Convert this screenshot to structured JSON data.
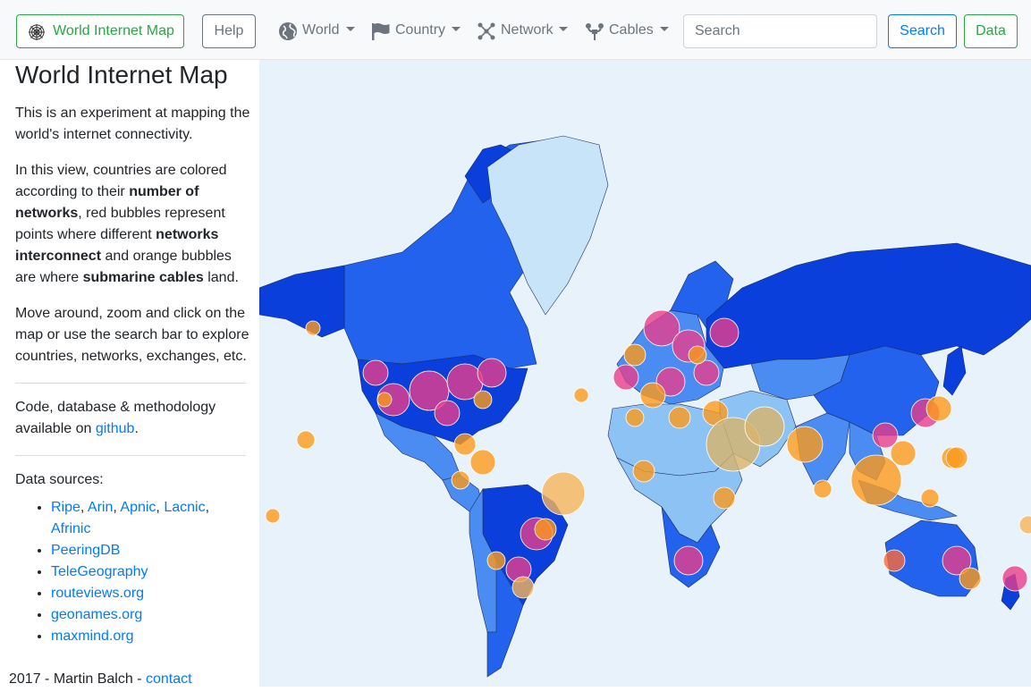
{
  "navbar": {
    "brand": "World Internet Map",
    "help": "Help",
    "menus": [
      {
        "label": "World",
        "icon": "globe-icon"
      },
      {
        "label": "Country",
        "icon": "flag-icon"
      },
      {
        "label": "Network",
        "icon": "network-icon"
      },
      {
        "label": "Cables",
        "icon": "cable-icon"
      }
    ],
    "search_placeholder": "Search",
    "search_button": "Search",
    "data_button": "Data"
  },
  "sidebar": {
    "title": "World Internet Map",
    "intro": "This is an experiment at mapping the world's internet connectivity.",
    "view": {
      "t1": "In this view, countries are colored according to their ",
      "b1": "number of networks",
      "t2": ", red bubbles represent points where different ",
      "b2": "networks interconnect",
      "t3": " and orange bubbles are where ",
      "b3": "submarine cables",
      "t4": " land."
    },
    "move": "Move around, zoom and click on the map or use the search bar to explore countries, networks, exchanges, etc.",
    "code_text": "Code, database & methodology available on ",
    "code_link": "github",
    "code_end": ".",
    "sources_title": "Data sources:",
    "rir": [
      "Ripe",
      "Arin",
      "Apnic",
      "Lacnic",
      "Afrinic"
    ],
    "sources": [
      "PeeringDB",
      "TeleGeography",
      "routeviews.org",
      "geonames.org",
      "maxmind.org"
    ]
  },
  "footer": {
    "text": "2017 - Martin Balch - ",
    "link": "contact"
  },
  "colors": {
    "ocean": "#e8f2fb",
    "country_most_networks": "#0a3fdc",
    "country_many_networks": "#2262ec",
    "country_some_networks": "#4a8cf2",
    "country_few_networks": "#8cc2f4",
    "greenland": "#c8e4f8",
    "ix_bubble": "#e83e8c",
    "cable_bubble": "#fd9a1a"
  }
}
